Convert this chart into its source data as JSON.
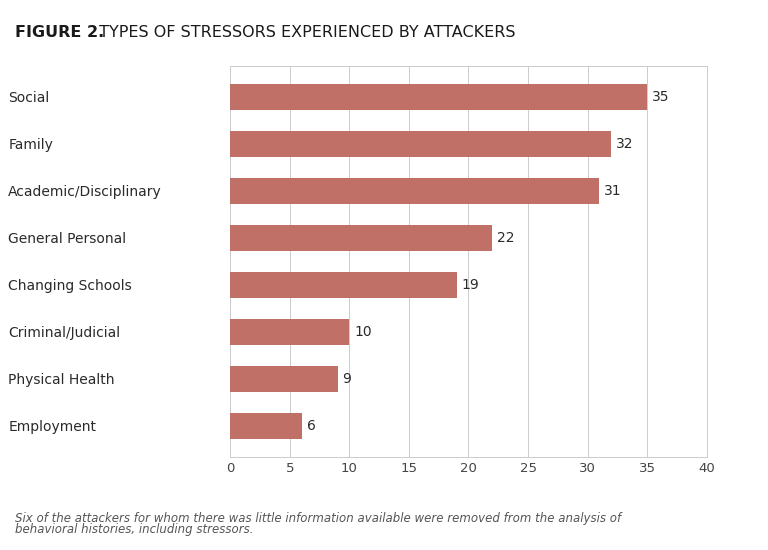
{
  "title_bold": "FIGURE 2.",
  "title_regular": " TYPES OF STRESSORS EXPERIENCED BY ATTACKERS",
  "categories": [
    "Employment",
    "Physical Health",
    "Criminal/Judicial",
    "Changing Schools",
    "General Personal",
    "Academic/Disciplinary",
    "Family",
    "Social"
  ],
  "values": [
    6,
    9,
    10,
    19,
    22,
    31,
    32,
    35
  ],
  "bar_color": "#c17068",
  "label_color": "#2a2a2a",
  "background_color": "#ffffff",
  "xlim": [
    0,
    40
  ],
  "xticks": [
    0,
    5,
    10,
    15,
    20,
    25,
    30,
    35,
    40
  ],
  "footnote_line1": "Six of the attackers for whom there was little information available were removed from the analysis of",
  "footnote_line2": "behavioral histories, including stressors.",
  "title_fontsize": 11.5,
  "label_fontsize": 10,
  "value_fontsize": 10,
  "tick_fontsize": 9.5,
  "footnote_fontsize": 8.5,
  "bar_height": 0.55
}
